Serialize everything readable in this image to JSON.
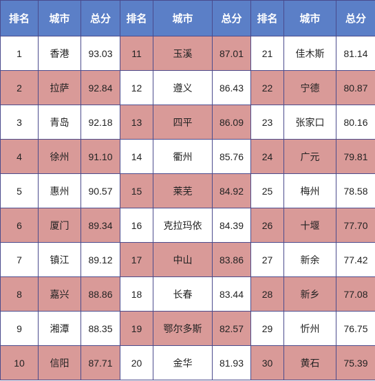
{
  "header": [
    "排名",
    "城市",
    "总分",
    "排名",
    "城市",
    "总分",
    "排名",
    "城市",
    "总分"
  ],
  "colors": {
    "header_bg": "#5b7fc7",
    "highlight": "#d99a98",
    "border": "#4a4a8c"
  },
  "rows": [
    [
      {
        "rank": "1",
        "city": "香港",
        "score": "93.03"
      },
      {
        "rank": "11",
        "city": "玉溪",
        "score": "87.01"
      },
      {
        "rank": "21",
        "city": "佳木斯",
        "score": "81.14"
      }
    ],
    [
      {
        "rank": "2",
        "city": "拉萨",
        "score": "92.84"
      },
      {
        "rank": "12",
        "city": "遵义",
        "score": "86.43"
      },
      {
        "rank": "22",
        "city": "宁德",
        "score": "80.87"
      }
    ],
    [
      {
        "rank": "3",
        "city": "青岛",
        "score": "92.18"
      },
      {
        "rank": "13",
        "city": "四平",
        "score": "86.09"
      },
      {
        "rank": "23",
        "city": "张家口",
        "score": "80.16"
      }
    ],
    [
      {
        "rank": "4",
        "city": "徐州",
        "score": "91.10"
      },
      {
        "rank": "14",
        "city": "衢州",
        "score": "85.76"
      },
      {
        "rank": "24",
        "city": "广元",
        "score": "79.81"
      }
    ],
    [
      {
        "rank": "5",
        "city": "惠州",
        "score": "90.57"
      },
      {
        "rank": "15",
        "city": "莱芜",
        "score": "84.92"
      },
      {
        "rank": "25",
        "city": "梅州",
        "score": "78.58"
      }
    ],
    [
      {
        "rank": "6",
        "city": "厦门",
        "score": "89.34"
      },
      {
        "rank": "16",
        "city": "克拉玛依",
        "score": "84.39"
      },
      {
        "rank": "26",
        "city": "十堰",
        "score": "77.70"
      }
    ],
    [
      {
        "rank": "7",
        "city": "镇江",
        "score": "89.12"
      },
      {
        "rank": "17",
        "city": "中山",
        "score": "83.86"
      },
      {
        "rank": "27",
        "city": "新余",
        "score": "77.42"
      }
    ],
    [
      {
        "rank": "8",
        "city": "嘉兴",
        "score": "88.86"
      },
      {
        "rank": "18",
        "city": "长春",
        "score": "83.44"
      },
      {
        "rank": "28",
        "city": "新乡",
        "score": "77.08"
      }
    ],
    [
      {
        "rank": "9",
        "city": "湘潭",
        "score": "88.35"
      },
      {
        "rank": "19",
        "city": "鄂尔多斯",
        "score": "82.57"
      },
      {
        "rank": "29",
        "city": "忻州",
        "score": "76.75"
      }
    ],
    [
      {
        "rank": "10",
        "city": "信阳",
        "score": "87.71"
      },
      {
        "rank": "20",
        "city": "金华",
        "score": "81.93"
      },
      {
        "rank": "30",
        "city": "黄石",
        "score": "75.39"
      }
    ]
  ]
}
